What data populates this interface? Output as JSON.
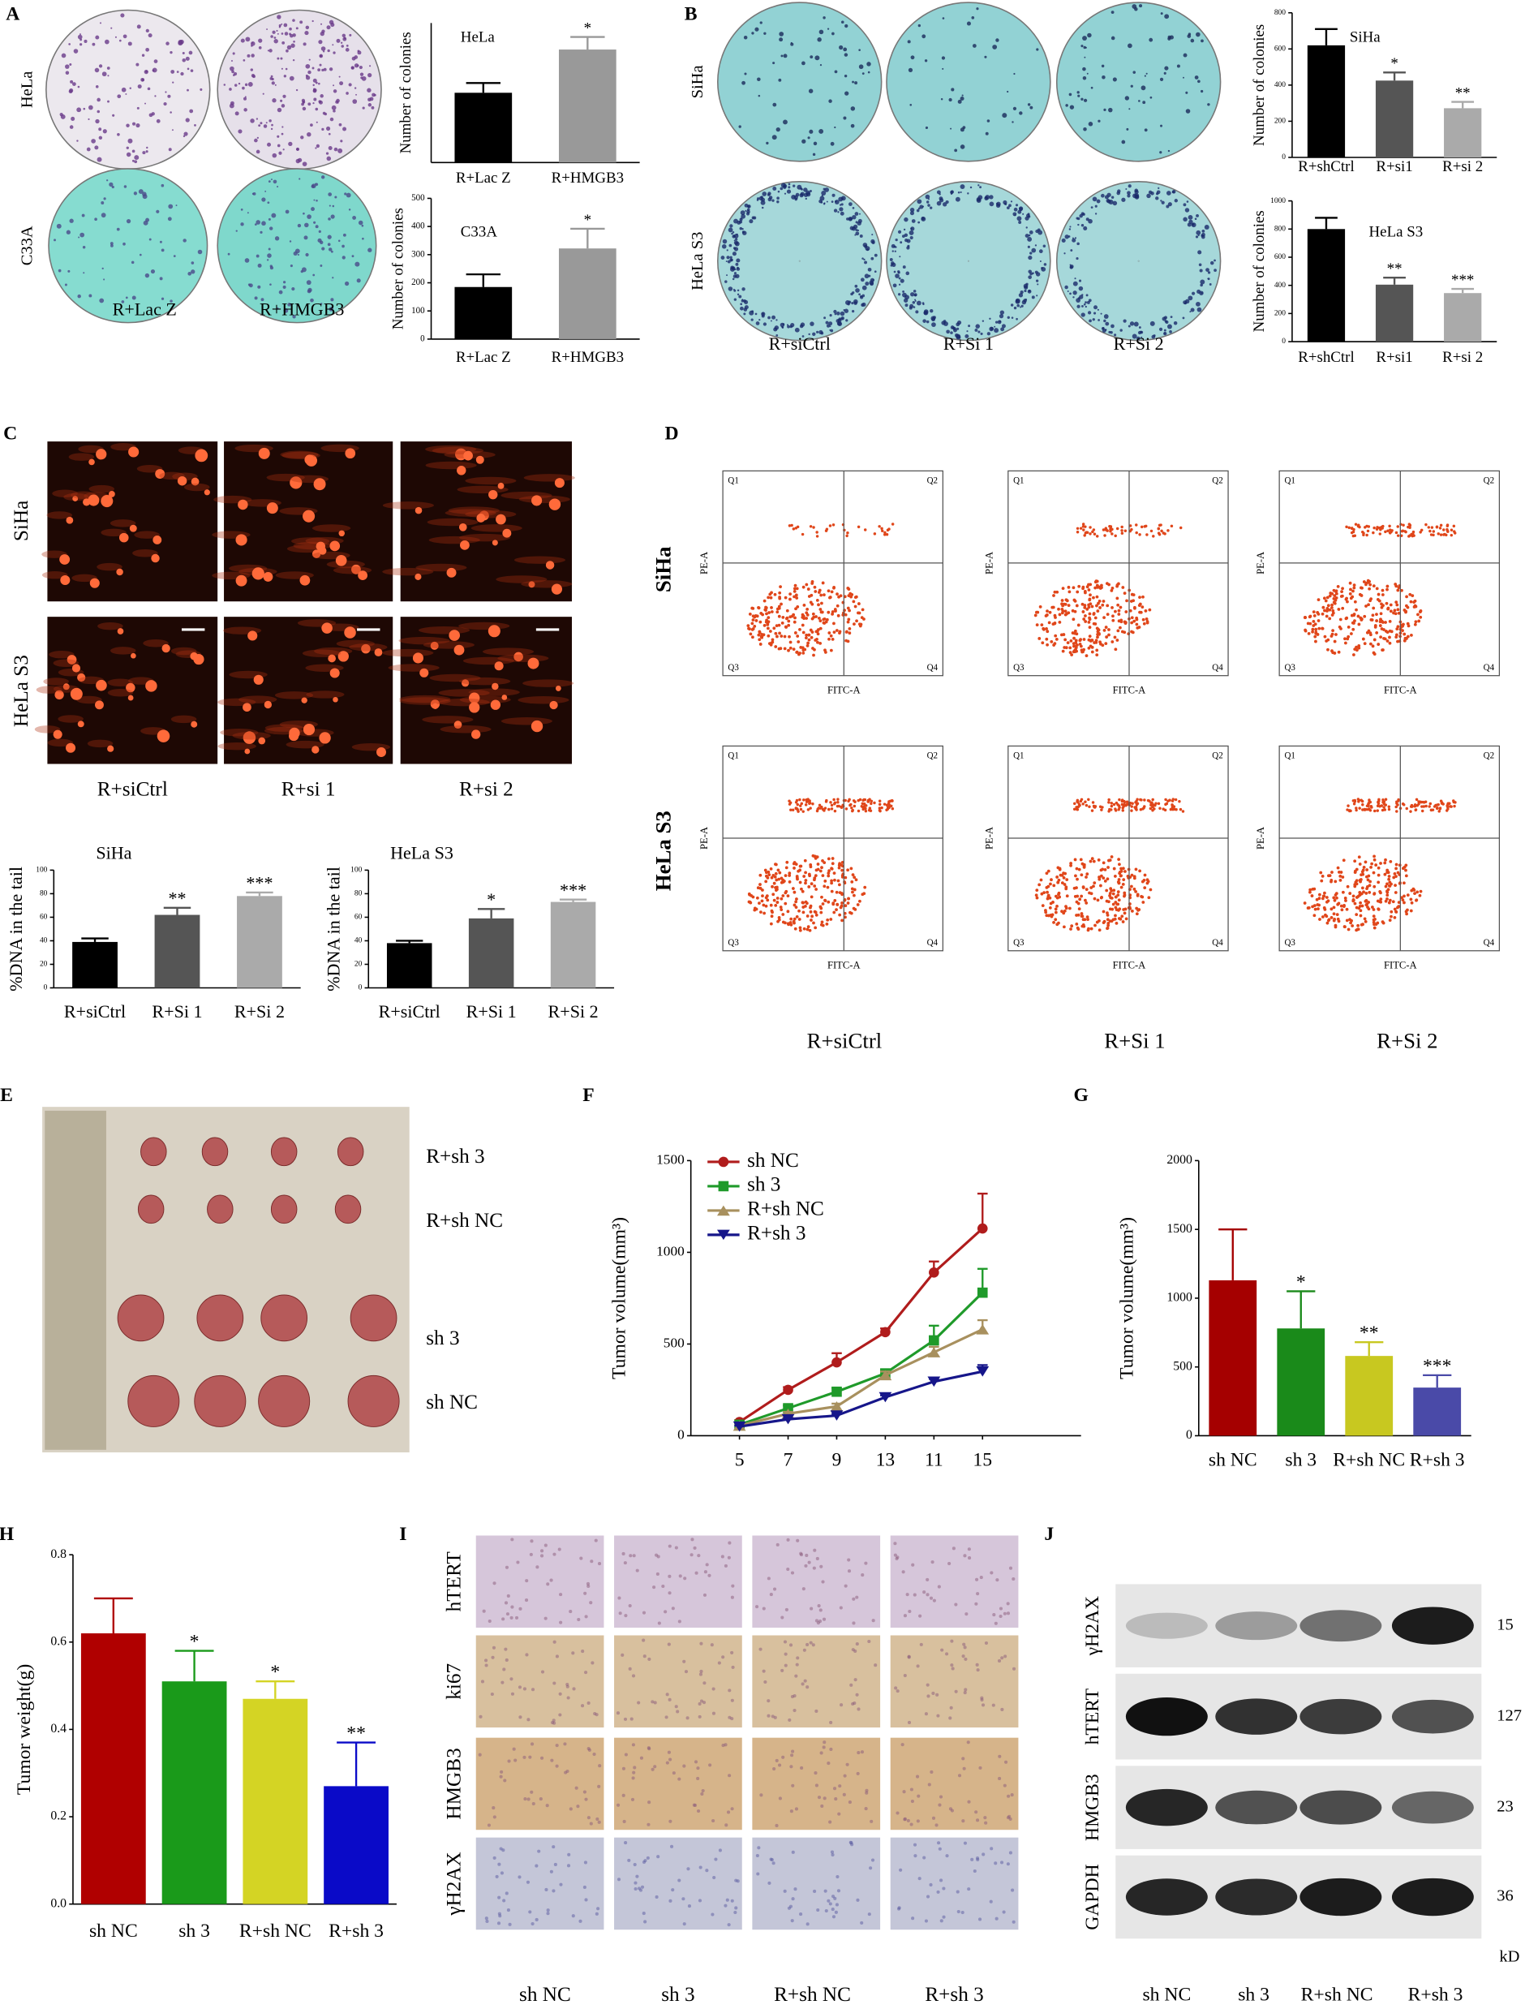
{
  "figure": {
    "panels": [
      "A",
      "B",
      "C",
      "D",
      "E",
      "F",
      "G",
      "H",
      "I",
      "J"
    ]
  },
  "photos": {
    "A": {
      "rows": [
        "HeLa",
        "C33A"
      ],
      "columns": [
        "R+Lac Z",
        "R+HMGB3"
      ]
    },
    "B": {
      "rows": [
        "SiHa",
        "HeLa S3"
      ],
      "columns": [
        "R+siCtrl",
        "R+Si 1",
        "R+Si 2"
      ]
    },
    "C": {
      "rows": [
        "SiHa",
        "HeLa S3"
      ],
      "columns": [
        "R+siCtrl",
        "R+si 1",
        "R+si 2"
      ]
    },
    "D": {
      "rows": [
        "SiHa",
        "HeLa S3"
      ],
      "columns": [
        "R+siCtrl",
        "R+Si 1",
        "R+Si 2"
      ],
      "quadrants": [
        "Q1",
        "Q2",
        "Q3",
        "Q4"
      ],
      "x_label": "FITC-A",
      "y_label": "PE-A"
    },
    "E": {
      "labels": [
        "R+sh 3",
        "R+sh NC",
        "sh 3",
        "sh NC"
      ]
    },
    "I": {
      "rows": [
        "hTERT",
        "ki67",
        "HMGB3",
        "γH2AX"
      ],
      "columns": [
        "sh NC",
        "sh 3",
        "R+sh NC",
        "R+sh 3"
      ]
    },
    "J": {
      "rows": [
        "γH2AX",
        "hTERT",
        "HMGB3",
        "GAPDH"
      ],
      "columns": [
        "sh NC",
        "sh 3",
        "R+sh NC",
        "R+sh 3"
      ],
      "sizes": [
        "15",
        "127",
        "23",
        "36"
      ],
      "unit": "kD"
    }
  },
  "chart_data": [
    {
      "type": "bar",
      "title": "HeLa",
      "y_label": "Number of colonies",
      "categories": [
        "R+Lac Z",
        "R+HMGB3"
      ],
      "values": [
        250,
        405
      ],
      "errors": [
        35,
        45
      ],
      "annotations": [
        null,
        "*"
      ],
      "colors": [
        "#000000",
        "#999999"
      ],
      "ylim": [
        0,
        500
      ]
    },
    {
      "type": "bar",
      "title": "C33A",
      "y_label": "Number of colonies",
      "categories": [
        "R+Lac Z",
        "R+HMGB3"
      ],
      "values": [
        185,
        322
      ],
      "errors": [
        45,
        70
      ],
      "annotations": [
        null,
        "*"
      ],
      "colors": [
        "#000000",
        "#999999"
      ],
      "ylim": [
        0,
        500
      ],
      "yticks": [
        0,
        100,
        200,
        300,
        400,
        500
      ]
    },
    {
      "type": "bar",
      "title": "SiHa",
      "y_label": "Number of colonies",
      "categories": [
        "R+shCtrl",
        "R+si1",
        "R+si 2"
      ],
      "values": [
        620,
        425,
        272
      ],
      "errors": [
        90,
        45,
        35
      ],
      "annotations": [
        null,
        "*",
        "**"
      ],
      "colors": [
        "#000000",
        "#555555",
        "#aaaaaa"
      ],
      "ylim": [
        0,
        800
      ],
      "yticks": [
        0,
        200,
        400,
        600,
        800
      ]
    },
    {
      "type": "bar",
      "title": "HeLa S3",
      "y_label": "Number of colonies",
      "categories": [
        "R+shCtrl",
        "R+si1",
        "R+si 2"
      ],
      "values": [
        800,
        405,
        345
      ],
      "errors": [
        80,
        50,
        30
      ],
      "annotations": [
        null,
        "**",
        "***"
      ],
      "colors": [
        "#000000",
        "#555555",
        "#aaaaaa"
      ],
      "ylim": [
        0,
        1000
      ],
      "yticks": [
        0,
        200,
        400,
        600,
        800,
        1000
      ]
    },
    {
      "type": "bar",
      "title": "SiHa",
      "y_label": "%DNA in the tail",
      "categories": [
        "R+siCtrl",
        "R+Si 1",
        "R+Si 2"
      ],
      "values": [
        39,
        62,
        78
      ],
      "errors": [
        3,
        6,
        3
      ],
      "annotations": [
        null,
        "**",
        "***"
      ],
      "colors": [
        "#000000",
        "#555555",
        "#aaaaaa"
      ],
      "ylim": [
        0,
        100
      ],
      "yticks": [
        0,
        20,
        40,
        60,
        80,
        100
      ]
    },
    {
      "type": "bar",
      "title": "HeLa S3",
      "y_label": "%DNA in the tail",
      "categories": [
        "R+siCtrl",
        "R+Si 1",
        "R+Si 2"
      ],
      "values": [
        38,
        59,
        73
      ],
      "errors": [
        2,
        8,
        2
      ],
      "annotations": [
        null,
        "*",
        "***"
      ],
      "colors": [
        "#000000",
        "#555555",
        "#aaaaaa"
      ],
      "ylim": [
        0,
        100
      ],
      "yticks": [
        0,
        20,
        40,
        60,
        80,
        100
      ]
    },
    {
      "type": "line",
      "y_label": "Tumor volume(mm³)",
      "categories": [
        "5",
        "7",
        "9",
        "13",
        "11",
        "15"
      ],
      "series": [
        {
          "name": "sh NC",
          "color": "#b01c1c",
          "marker": "circle",
          "values": [
            75,
            250,
            400,
            565,
            890,
            1130
          ],
          "errors": [
            10,
            15,
            50,
            20,
            60,
            190
          ]
        },
        {
          "name": "sh 3",
          "color": "#1f9a2a",
          "marker": "square",
          "values": [
            60,
            150,
            240,
            340,
            520,
            780
          ],
          "errors": [
            8,
            15,
            20,
            20,
            80,
            130
          ]
        },
        {
          "name": "R+sh NC",
          "color": "#a8905e",
          "marker": "triangle-up",
          "values": [
            55,
            120,
            160,
            330,
            455,
            580
          ],
          "errors": [
            5,
            10,
            15,
            20,
            30,
            50
          ]
        },
        {
          "name": "R+sh 3",
          "color": "#16168a",
          "marker": "triangle-down",
          "values": [
            50,
            90,
            110,
            210,
            295,
            350
          ],
          "errors": [
            5,
            5,
            10,
            10,
            15,
            35
          ]
        }
      ],
      "ylim": [
        0,
        1500
      ],
      "yticks": [
        0,
        500,
        1000,
        1500
      ]
    },
    {
      "type": "bar",
      "y_label": "Tumor volume(mm³)",
      "categories": [
        "sh NC",
        "sh 3",
        "R+sh NC",
        "R+sh 3"
      ],
      "values": [
        1130,
        780,
        580,
        350
      ],
      "errors": [
        370,
        270,
        100,
        90
      ],
      "annotations": [
        null,
        "*",
        "**",
        "***"
      ],
      "colors": [
        "#a50000",
        "#1a8a1a",
        "#c8c820",
        "#4a4aa8"
      ],
      "ylim": [
        0,
        2000
      ],
      "yticks": [
        0,
        500,
        1000,
        1500,
        2000
      ]
    },
    {
      "type": "bar",
      "y_label": "Tumor weight(g)",
      "categories": [
        "sh NC",
        "sh 3",
        "R+sh NC",
        "R+sh 3"
      ],
      "values": [
        0.62,
        0.51,
        0.47,
        0.27
      ],
      "errors": [
        0.08,
        0.07,
        0.04,
        0.1
      ],
      "annotations": [
        null,
        "*",
        "*",
        "**"
      ],
      "colors": [
        "#b00000",
        "#1a9a1a",
        "#d4d424",
        "#0a0ac8"
      ],
      "ylim": [
        0,
        0.8
      ],
      "yticks": [
        {
          "value": 0,
          "label": "0.0"
        },
        0.2,
        0.4,
        0.6,
        0.8
      ]
    }
  ]
}
